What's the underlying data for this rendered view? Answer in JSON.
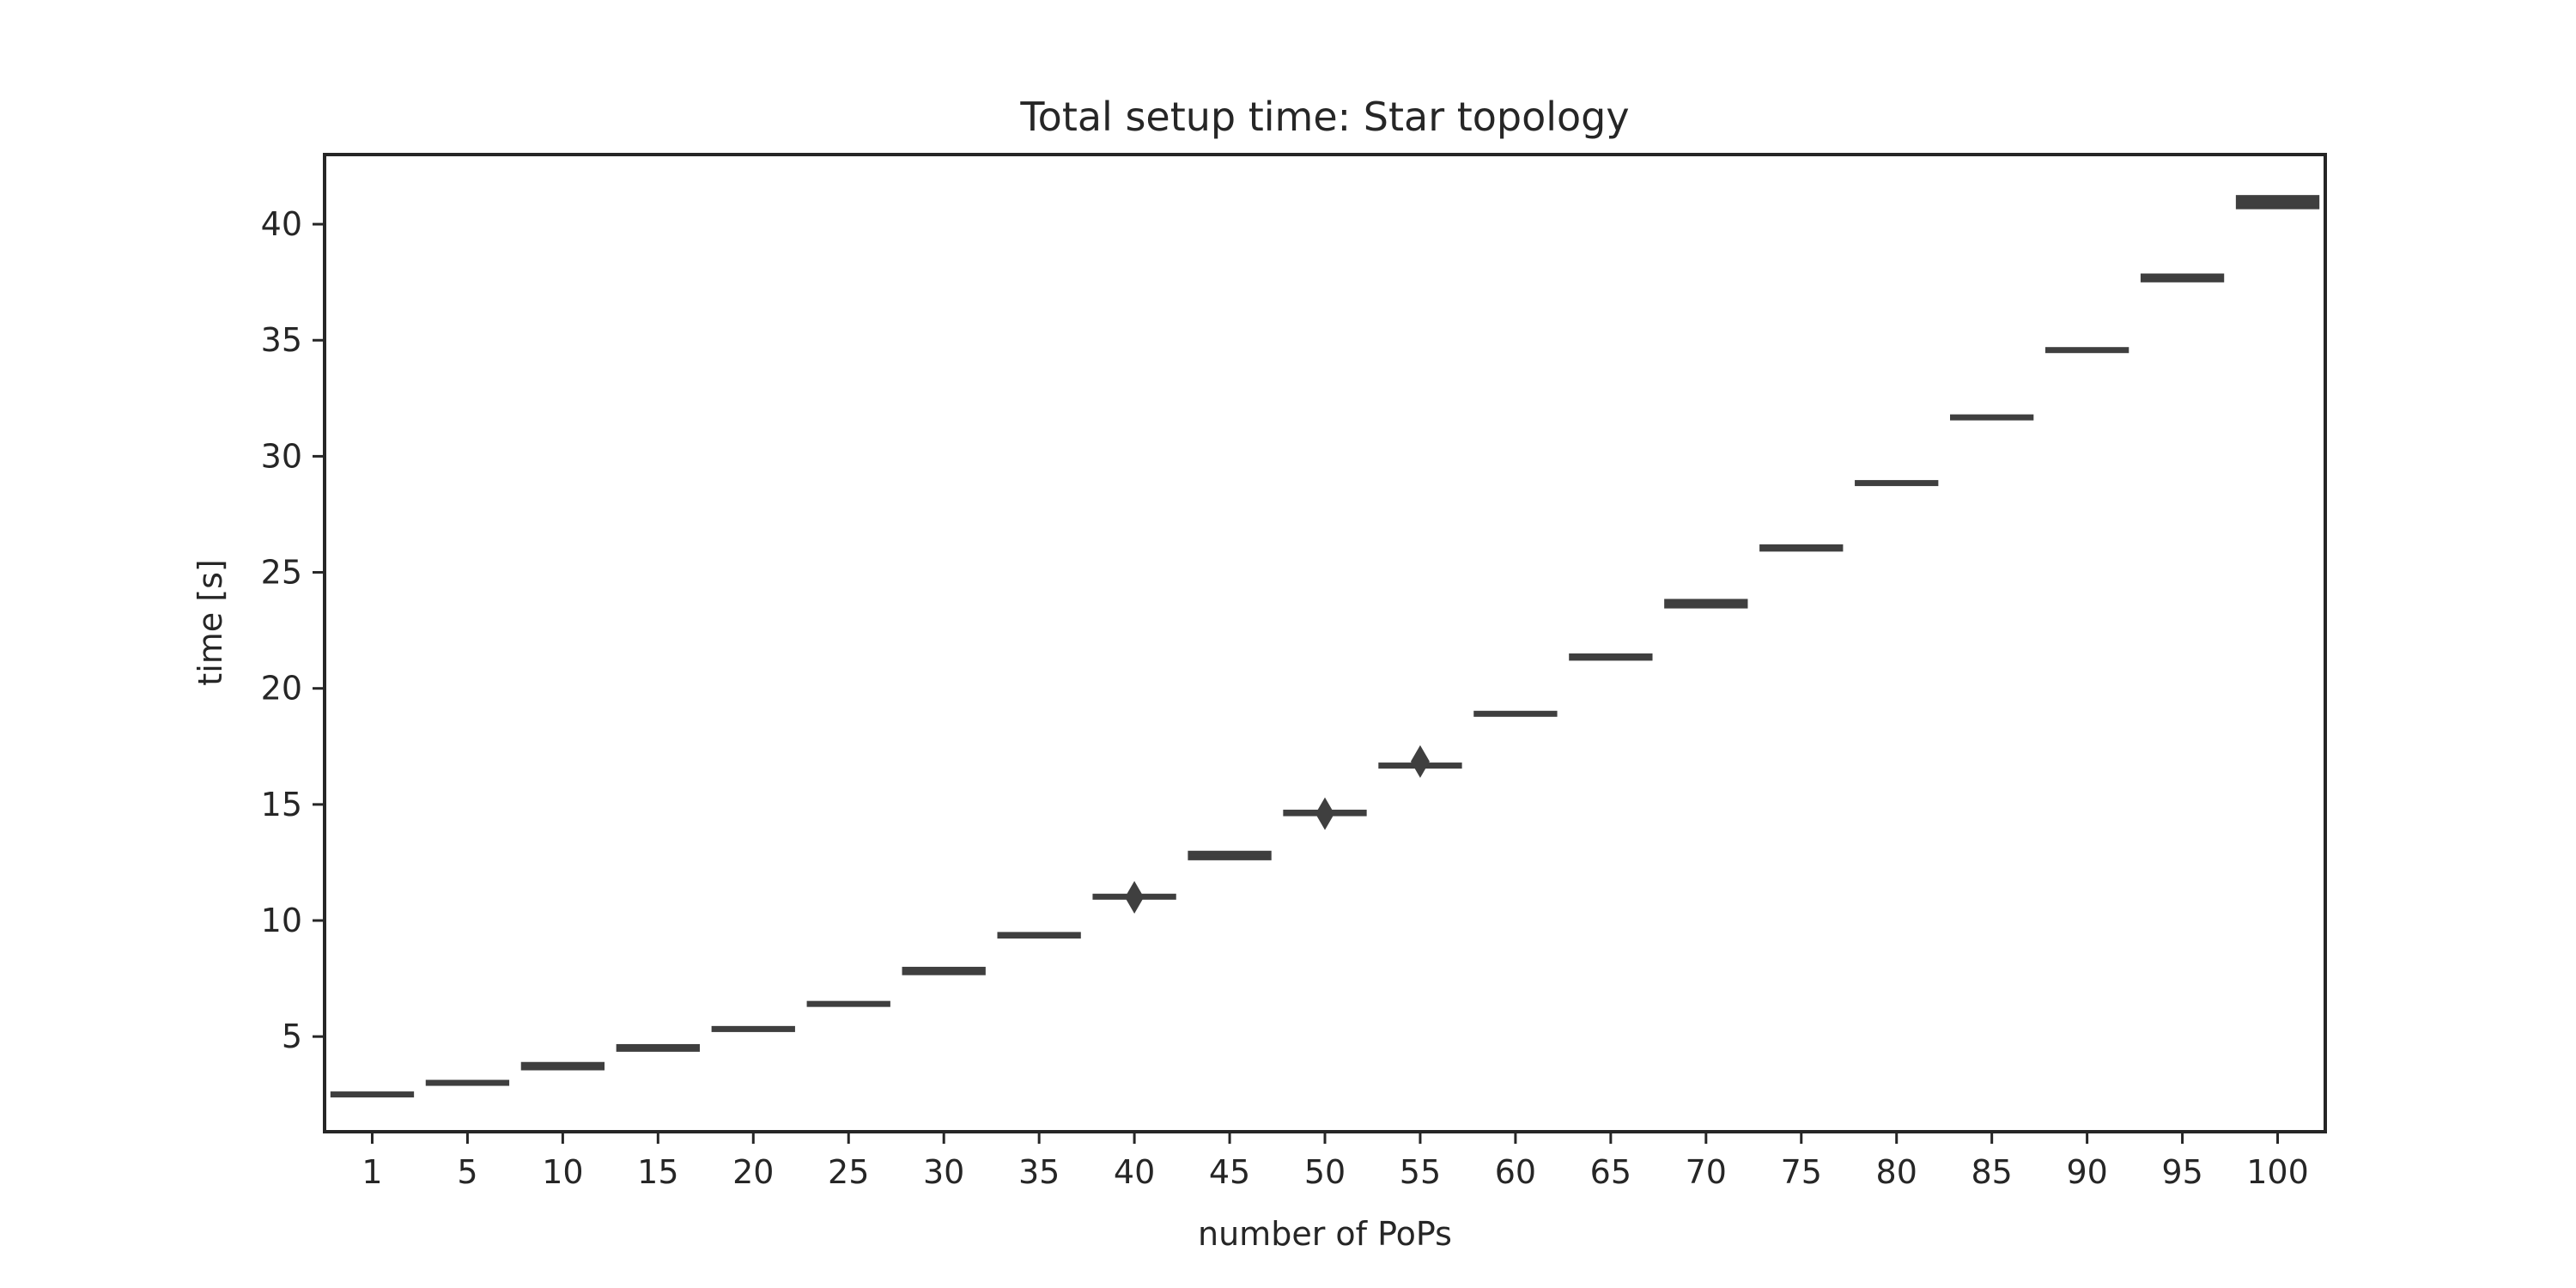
{
  "chart_data": {
    "type": "box",
    "title": "Total setup time: Star topology",
    "xlabel": "number of PoPs",
    "ylabel": "time [s]",
    "categories": [
      "1",
      "5",
      "10",
      "15",
      "20",
      "25",
      "30",
      "35",
      "40",
      "45",
      "50",
      "55",
      "60",
      "65",
      "70",
      "75",
      "80",
      "85",
      "90",
      "95",
      "100"
    ],
    "ylim": [
      0.9,
      43.0
    ],
    "yticks": [
      5,
      10,
      15,
      20,
      25,
      30,
      35,
      40
    ],
    "boxes": [
      {
        "q1": 2.45,
        "median": 2.5,
        "q3": 2.58
      },
      {
        "q1": 2.95,
        "median": 3.0,
        "q3": 3.08
      },
      {
        "q1": 3.6,
        "median": 3.7,
        "q3": 3.85
      },
      {
        "q1": 4.4,
        "median": 4.5,
        "q3": 4.62
      },
      {
        "q1": 5.25,
        "median": 5.32,
        "q3": 5.4
      },
      {
        "q1": 6.38,
        "median": 6.42,
        "q3": 6.48
      },
      {
        "q1": 7.7,
        "median": 7.8,
        "q3": 7.95
      },
      {
        "q1": 9.28,
        "median": 9.35,
        "q3": 9.45
      },
      {
        "q1": 10.98,
        "median": 11.05,
        "q3": 11.1,
        "fliers": [
          11.0
        ]
      },
      {
        "q1": 12.65,
        "median": 12.8,
        "q3": 12.95
      },
      {
        "q1": 14.55,
        "median": 14.65,
        "q3": 14.72,
        "fliers": [
          14.6
        ]
      },
      {
        "q1": 16.6,
        "median": 16.7,
        "q3": 16.75,
        "fliers": [
          16.85
        ]
      },
      {
        "q1": 18.85,
        "median": 18.9,
        "q3": 18.98
      },
      {
        "q1": 21.25,
        "median": 21.35,
        "q3": 21.45
      },
      {
        "q1": 23.5,
        "median": 23.65,
        "q3": 23.8
      },
      {
        "q1": 25.95,
        "median": 26.05,
        "q3": 26.15
      },
      {
        "q1": 28.8,
        "median": 28.85,
        "q3": 28.92
      },
      {
        "q1": 31.62,
        "median": 31.7,
        "q3": 31.75
      },
      {
        "q1": 34.55,
        "median": 34.6,
        "q3": 34.65
      },
      {
        "q1": 37.55,
        "median": 37.7,
        "q3": 37.82
      },
      {
        "q1": 40.7,
        "median": 41.0,
        "q3": 41.2
      }
    ],
    "colors": {
      "box": "#3f3f3f",
      "frame": "#262626",
      "text": "#262626"
    },
    "grid": false,
    "legend": "none"
  }
}
